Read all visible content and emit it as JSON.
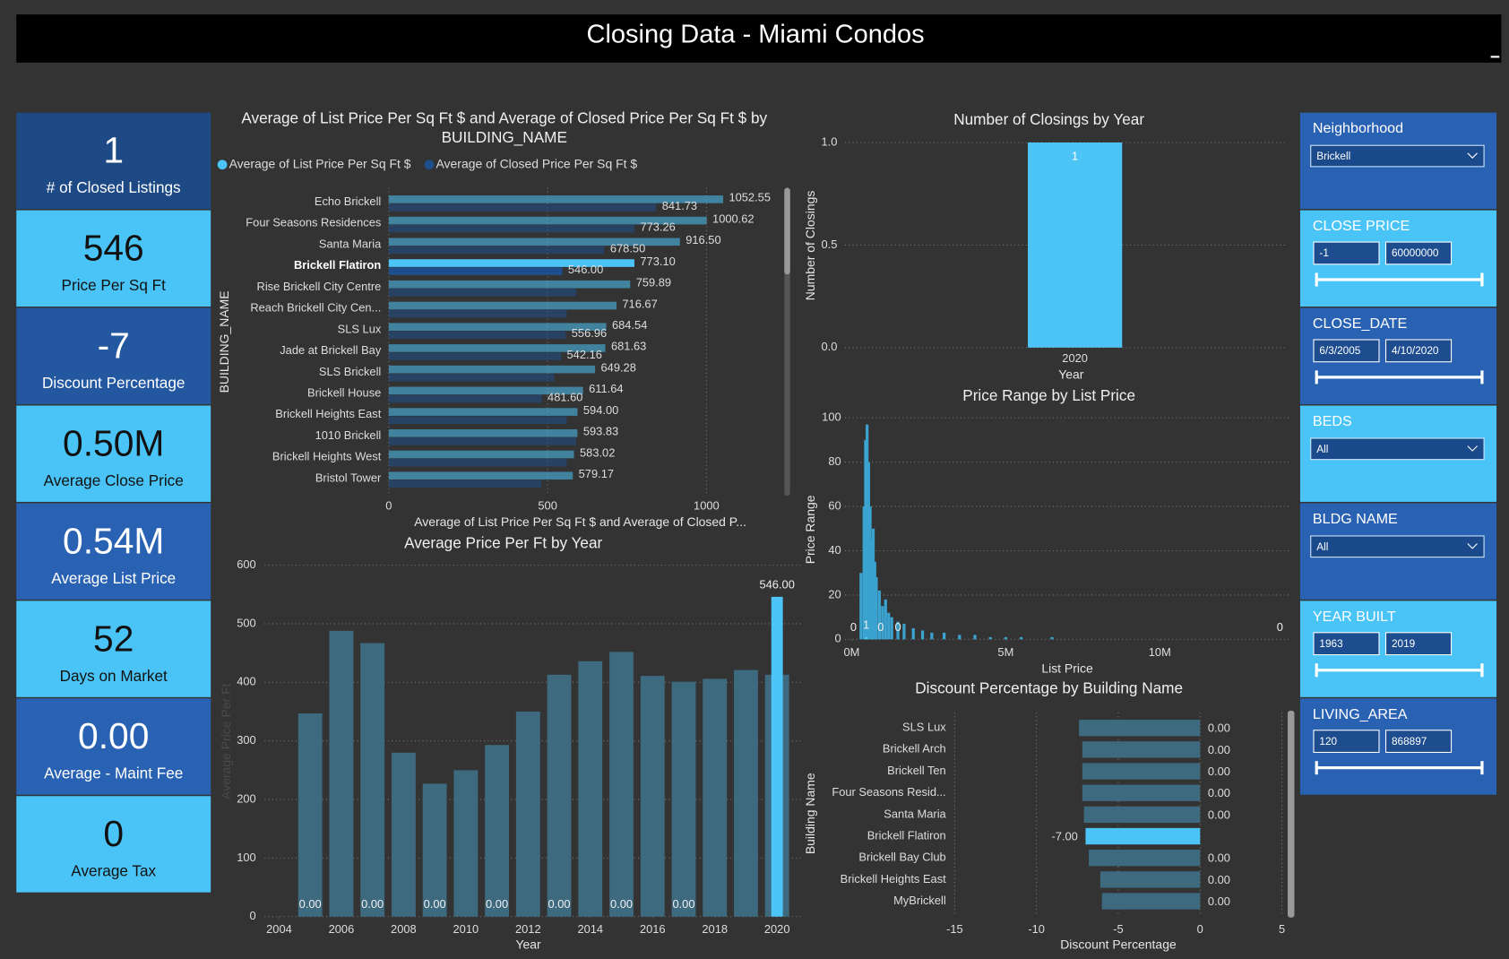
{
  "header": {
    "title": "Closing Data - Miami Condos"
  },
  "cards": [
    {
      "value": "1",
      "label": "# of Closed Listings"
    },
    {
      "value": "546",
      "label": "Price Per Sq Ft"
    },
    {
      "value": "-7",
      "label": "Discount Percentage"
    },
    {
      "value": "0.50M",
      "label": "Average Close Price"
    },
    {
      "value": "0.54M",
      "label": "Average List Price"
    },
    {
      "value": "52",
      "label": "Days on Market"
    },
    {
      "value": "0.00",
      "label": "Average - Maint Fee"
    },
    {
      "value": "0",
      "label": "Average Tax"
    }
  ],
  "slicers": [
    {
      "title": "Neighborhood",
      "selection": "Brickell"
    },
    {
      "title": "CLOSE PRICE",
      "range": [
        "-1",
        "60000000"
      ]
    },
    {
      "title": "CLOSE_DATE",
      "range": [
        "6/3/2005",
        "4/10/2020"
      ]
    },
    {
      "title": "BEDS",
      "selection": "All"
    },
    {
      "title": "BLDG NAME",
      "selection": "All"
    },
    {
      "title": "YEAR BUILT",
      "range": [
        "1963",
        "2019"
      ]
    },
    {
      "title": "LIVING_AREA",
      "range": [
        "120",
        "868897"
      ]
    }
  ],
  "chart_data": [
    {
      "type": "hbar",
      "title": "Average of List Price Per Sq Ft $ and Average of Closed Price Per Sq Ft $ by BUILDING_NAME",
      "x_label": "Average of List Price Per Sq Ft $ and Average of Closed P...",
      "y_label": "BUILDING_NAME",
      "highlight": "Brickell Flatiron",
      "categories": [
        "Echo Brickell",
        "Four Seasons Residences",
        "Santa Maria",
        "Brickell Flatiron",
        "Rise Brickell City Centre",
        "Reach Brickell City Cen...",
        "SLS Lux",
        "Jade at Brickell Bay",
        "SLS Brickell",
        "Brickell House",
        "Brickell Heights East",
        "1010 Brickell",
        "Brickell Heights West",
        "Bristol Tower"
      ],
      "series": [
        {
          "name": "Average of List Price Per Sq Ft $",
          "color": "#4cc4f5",
          "values": [
            1052.55,
            1000.62,
            916.5,
            773.1,
            759.89,
            716.67,
            684.54,
            681.63,
            649.28,
            611.64,
            594.0,
            593.83,
            583.02,
            579.17
          ],
          "value_labels": [
            "1052.55",
            "1000.62",
            "916.50",
            "773.10",
            "759.89",
            "716.67",
            "684.54",
            "681.63",
            "649.28",
            "611.64",
            "594.00",
            "593.83",
            "583.02",
            "579.17"
          ]
        },
        {
          "name": "Average of Closed Price Per Sq Ft $",
          "color": "#1f4e8c",
          "values": [
            841.73,
            773.26,
            678.5,
            546.0,
            590,
            560,
            556.96,
            542.16,
            520,
            481.6,
            560,
            590,
            560,
            480
          ],
          "value_labels": [
            "841.73",
            "773.26",
            "678.50",
            "546.00",
            null,
            null,
            "556.96",
            "542.16",
            null,
            "481.60",
            null,
            null,
            null,
            null
          ]
        }
      ],
      "xlim": [
        0,
        1230
      ],
      "xticks": [
        0,
        500,
        1000
      ],
      "grid": true
    },
    {
      "type": "column",
      "title": "Average Price Per Ft by Year",
      "x_label": "Year",
      "y_label": "Average Price Per Ft",
      "x": [
        2005,
        2006,
        2007,
        2008,
        2009,
        2010,
        2011,
        2012,
        2013,
        2014,
        2015,
        2016,
        2017,
        2018,
        2019,
        2020
      ],
      "series": [
        {
          "color": "#3e6a80",
          "values": [
            347,
            488,
            467,
            280,
            227,
            250,
            293,
            350,
            413,
            436,
            452,
            411,
            401,
            406,
            421,
            413
          ]
        },
        {
          "color": "#4cc4f5",
          "values": [
            0,
            0,
            0,
            0,
            0,
            0,
            0,
            0,
            0,
            0,
            0,
            0,
            0,
            0,
            0,
            546
          ],
          "value_labels": [
            "0.00",
            null,
            "0.00",
            null,
            "0.00",
            null,
            "0.00",
            null,
            "0.00",
            null,
            "0.00",
            null,
            "0.00",
            null,
            null,
            "546.00"
          ]
        }
      ],
      "xlim": [
        2004,
        2020.45
      ],
      "xticks": [
        2004,
        2006,
        2008,
        2010,
        2012,
        2014,
        2016,
        2018,
        2020
      ],
      "ylim": [
        0,
        600
      ],
      "yticks": [
        0,
        100,
        200,
        300,
        400,
        500,
        600
      ],
      "grid": true
    },
    {
      "type": "bar",
      "title": "Number of Closings by Year",
      "x_label": "Year",
      "y_label": "Number of Closings",
      "categories": [
        "2020"
      ],
      "values": [
        1
      ],
      "color": "#4cc4f5",
      "ylim": [
        0,
        1
      ],
      "yticks": [
        {
          "value": 0,
          "label": "0.0"
        },
        {
          "value": 0.5,
          "label": "0.5"
        },
        {
          "value": 1,
          "label": "1.0"
        }
      ],
      "grid": true
    },
    {
      "type": "column",
      "title": "Price Range by List Price",
      "x_label": "List Price",
      "y_label": "Price Range",
      "series": [
        {
          "color": "#3aa3d0",
          "x": [
            300000,
            400000,
            450000,
            500000,
            550000,
            600000,
            650000,
            700000,
            750000,
            800000,
            900000,
            1000000,
            1100000,
            1200000,
            1300000,
            1500000,
            1700000,
            2000000,
            2300000,
            2600000,
            3000000,
            3500000,
            4000000,
            4500000,
            5000000,
            5500000,
            6500000
          ],
          "values": [
            30,
            60,
            90,
            97,
            80,
            60,
            45,
            50,
            35,
            28,
            22,
            15,
            18,
            12,
            10,
            8,
            7,
            5,
            4,
            3,
            3,
            2,
            2,
            1,
            1,
            1,
            1
          ]
        },
        {
          "color": "#4cc4f5",
          "x": [
            60000,
            470000,
            940000,
            1500000,
            13900000
          ],
          "values": [
            0,
            1,
            0,
            0,
            0
          ]
        }
      ],
      "xlim": [
        0,
        13900000
      ],
      "xticks": [
        {
          "value": 0,
          "label": "0M"
        },
        {
          "value": 5000000,
          "label": "5M"
        },
        {
          "value": 10000000,
          "label": "10M"
        }
      ],
      "ylim": [
        0,
        100
      ],
      "yticks": [
        0,
        20,
        40,
        60,
        80,
        100
      ],
      "grid": true
    },
    {
      "type": "hbar",
      "title": "Discount Percentage by Building Name",
      "x_label": "Discount Percentage",
      "y_label": "Building Name",
      "categories": [
        "SLS Lux",
        "Brickell Arch",
        "Brickell Ten",
        "Four Seasons Resid...",
        "Santa Maria",
        "Brickell Flatiron",
        "Brickell Bay Club",
        "Brickell Heights East",
        "MyBrickell"
      ],
      "series": [
        {
          "color": "#3e6a80",
          "values": [
            -7.4,
            -7.2,
            -7.2,
            -7.2,
            -7.1,
            -7.0,
            -6.8,
            -6.1,
            -6.0
          ]
        },
        {
          "color": "#4cc4f5",
          "values": [
            0,
            0,
            0,
            0,
            0,
            -7.0,
            0,
            0,
            0
          ],
          "value_labels": [
            "0.00",
            "0.00",
            "0.00",
            "0.00",
            "0.00",
            "-7.00",
            "0.00",
            "0.00",
            "0.00"
          ]
        }
      ],
      "xlim": [
        -15,
        5
      ],
      "xticks": [
        -15,
        -10,
        -5,
        0,
        5
      ],
      "grid": true
    }
  ]
}
